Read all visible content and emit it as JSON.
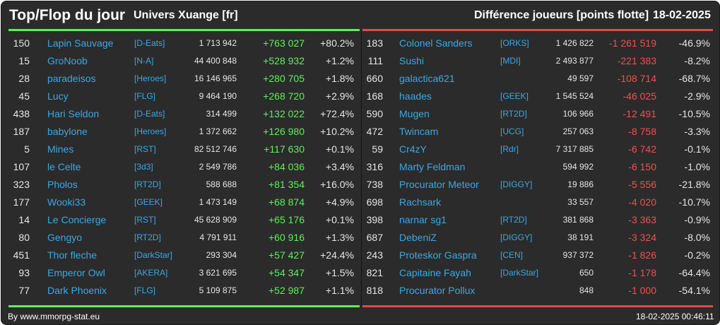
{
  "header": {
    "title": "Top/Flop du jour",
    "universe": "Univers Xuange [fr]",
    "metric": "Différence joueurs [points flotte]",
    "date": "18-02-2025"
  },
  "colors": {
    "positive": "#5cf05c",
    "negative": "#f05050",
    "link": "#3aa8e6",
    "background": "#2b2b2b"
  },
  "top": [
    {
      "rank": "150",
      "name": "Lapin Sauvage",
      "alliance": "[D-Eats]",
      "points": "1 713 942",
      "diff": "+763 027",
      "pct": "+80.2%"
    },
    {
      "rank": "15",
      "name": "GroNoob",
      "alliance": "[N-A]",
      "points": "44 400 848",
      "diff": "+528 932",
      "pct": "+1.2%"
    },
    {
      "rank": "28",
      "name": "paradeisos",
      "alliance": "[Heroes]",
      "points": "16 146 965",
      "diff": "+280 705",
      "pct": "+1.8%"
    },
    {
      "rank": "45",
      "name": "Lucy",
      "alliance": "[FLG]",
      "points": "9 464 190",
      "diff": "+268 720",
      "pct": "+2.9%"
    },
    {
      "rank": "438",
      "name": "Hari Seldon",
      "alliance": "[D-Eats]",
      "points": "314 499",
      "diff": "+132 022",
      "pct": "+72.4%"
    },
    {
      "rank": "187",
      "name": "babylone",
      "alliance": "[Heroes]",
      "points": "1 372 662",
      "diff": "+126 980",
      "pct": "+10.2%"
    },
    {
      "rank": "5",
      "name": "Mines",
      "alliance": "[RST]",
      "points": "82 512 746",
      "diff": "+117 630",
      "pct": "+0.1%"
    },
    {
      "rank": "107",
      "name": "le Celte",
      "alliance": "[3d3]",
      "points": "2 549 786",
      "diff": "+84 036",
      "pct": "+3.4%"
    },
    {
      "rank": "323",
      "name": "Pholos",
      "alliance": "[RT2D]",
      "points": "588 688",
      "diff": "+81 354",
      "pct": "+16.0%"
    },
    {
      "rank": "177",
      "name": "Wooki33",
      "alliance": "[GEEK]",
      "points": "1 473 149",
      "diff": "+68 874",
      "pct": "+4.9%"
    },
    {
      "rank": "14",
      "name": "Le Concierge",
      "alliance": "[RST]",
      "points": "45 628 909",
      "diff": "+65 176",
      "pct": "+0.1%"
    },
    {
      "rank": "80",
      "name": "Gengyo",
      "alliance": "[RT2D]",
      "points": "4 791 911",
      "diff": "+60 916",
      "pct": "+1.3%"
    },
    {
      "rank": "451",
      "name": "Thor fleche",
      "alliance": "[DarkStar]",
      "points": "293 304",
      "diff": "+57 427",
      "pct": "+24.4%"
    },
    {
      "rank": "93",
      "name": "Emperor Owl",
      "alliance": "[AKERA]",
      "points": "3 621 695",
      "diff": "+54 347",
      "pct": "+1.5%"
    },
    {
      "rank": "77",
      "name": "Dark Phoenix",
      "alliance": "[FLG]",
      "points": "5 109 875",
      "diff": "+52 987",
      "pct": "+1.1%"
    }
  ],
  "flop": [
    {
      "rank": "183",
      "name": "Colonel Sanders",
      "alliance": "[ORKS]",
      "points": "1 426 822",
      "diff": "-1 261 519",
      "pct": "-46.9%"
    },
    {
      "rank": "111",
      "name": "Sushi",
      "alliance": "[MDI]",
      "points": "2 493 877",
      "diff": "-221 383",
      "pct": "-8.2%"
    },
    {
      "rank": "660",
      "name": "galactica621",
      "alliance": "",
      "points": "49 597",
      "diff": "-108 714",
      "pct": "-68.7%"
    },
    {
      "rank": "168",
      "name": "haades",
      "alliance": "[GEEK]",
      "points": "1 545 524",
      "diff": "-46 025",
      "pct": "-2.9%"
    },
    {
      "rank": "590",
      "name": "Mugen",
      "alliance": "[RT2D]",
      "points": "106 966",
      "diff": "-12 491",
      "pct": "-10.5%"
    },
    {
      "rank": "472",
      "name": "Twincam",
      "alliance": "[UCG]",
      "points": "257 063",
      "diff": "-8 758",
      "pct": "-3.3%"
    },
    {
      "rank": "59",
      "name": "Cr4zY",
      "alliance": "[Rdr]",
      "points": "7 317 885",
      "diff": "-6 742",
      "pct": "-0.1%"
    },
    {
      "rank": "316",
      "name": "Marty Feldman",
      "alliance": "",
      "points": "594 992",
      "diff": "-6 150",
      "pct": "-1.0%"
    },
    {
      "rank": "738",
      "name": "Procurator Meteor",
      "alliance": "[DIGGY]",
      "points": "19 886",
      "diff": "-5 556",
      "pct": "-21.8%"
    },
    {
      "rank": "698",
      "name": "Rachsark",
      "alliance": "",
      "points": "33 557",
      "diff": "-4 020",
      "pct": "-10.7%"
    },
    {
      "rank": "398",
      "name": "narnar sg1",
      "alliance": "[RT2D]",
      "points": "381 868",
      "diff": "-3 363",
      "pct": "-0.9%"
    },
    {
      "rank": "687",
      "name": "DebeniZ",
      "alliance": "[DIGGY]",
      "points": "38 191",
      "diff": "-3 324",
      "pct": "-8.0%"
    },
    {
      "rank": "243",
      "name": "Proteskor Gaspra",
      "alliance": "[CEN]",
      "points": "937 372",
      "diff": "-1 826",
      "pct": "-0.2%"
    },
    {
      "rank": "821",
      "name": "Capitaine Fayah",
      "alliance": "[DarkStar]",
      "points": "650",
      "diff": "-1 178",
      "pct": "-64.4%"
    },
    {
      "rank": "818",
      "name": "Procurator Pollux",
      "alliance": "",
      "points": "848",
      "diff": "-1 000",
      "pct": "-54.1%"
    }
  ],
  "footer": {
    "source": "By www.mmorpg-stat.eu",
    "timestamp": "18-02-2025 00:46:11"
  }
}
